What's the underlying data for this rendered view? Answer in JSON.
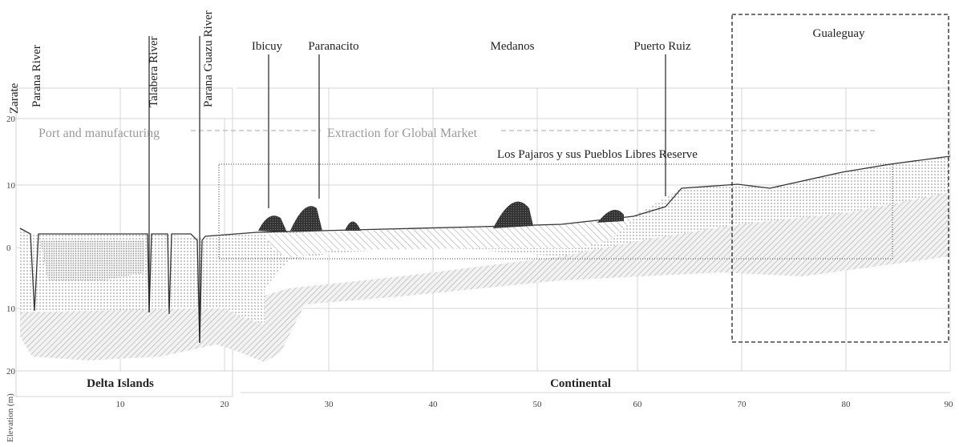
{
  "river_labels": [
    "Zarate",
    "Parana River",
    "Talabera River",
    "Parana Guazu River"
  ],
  "place_labels": [
    "Ibicuy",
    "Paranacito",
    "Medanos",
    "Puerto Ruiz",
    "Gualeguay"
  ],
  "uses": [
    "Port and manufacturing",
    "Extraction for Global Market"
  ],
  "reserve": "Los Pajaros y sus Pueblos Libres Reserve",
  "zones": [
    "Delta Islands",
    "Continental"
  ],
  "y_axis_title": "Elevation (m)",
  "y_ticks": [
    "20",
    "10",
    "0",
    "10",
    "20"
  ],
  "x_ticks": [
    "10",
    "20",
    "30",
    "40",
    "50",
    "60",
    "70",
    "80",
    "90"
  ]
}
